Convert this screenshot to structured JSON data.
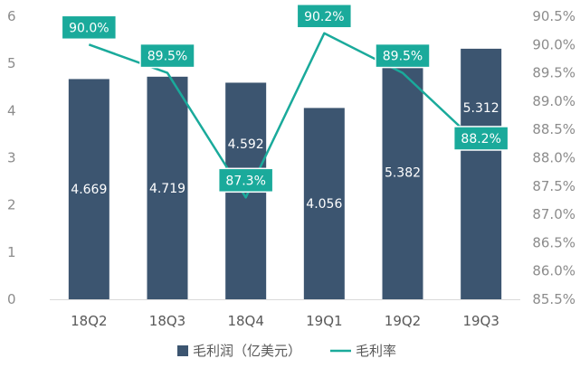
{
  "chart_data": {
    "type": "bar",
    "categories": [
      "18Q2",
      "18Q3",
      "18Q4",
      "19Q1",
      "19Q2",
      "19Q3"
    ],
    "series": [
      {
        "name": "毛利润（亿美元）",
        "type": "bar",
        "axis": "left",
        "values": [
          4.669,
          4.719,
          4.592,
          4.056,
          5.382,
          5.312
        ],
        "labels": [
          "4.669",
          "4.719",
          "4.592",
          "4.056",
          "5.382",
          "5.312"
        ],
        "color": "#3c5570"
      },
      {
        "name": "毛利率",
        "type": "line",
        "axis": "right",
        "values": [
          90.0,
          89.5,
          87.3,
          90.2,
          89.5,
          88.2
        ],
        "labels": [
          "90.0%",
          "89.5%",
          "87.3%",
          "90.2%",
          "89.5%",
          "88.2%"
        ],
        "color": "#1aaa9b"
      }
    ],
    "y_left": {
      "lim": [
        0,
        6
      ],
      "ticks": [
        "0",
        "1",
        "2",
        "3",
        "4",
        "5",
        "6"
      ]
    },
    "y_right": {
      "lim": [
        85.5,
        90.5
      ],
      "ticks": [
        "85.5%",
        "86.0%",
        "86.5%",
        "87.0%",
        "87.5%",
        "88.0%",
        "88.5%",
        "89.0%",
        "89.5%",
        "90.0%",
        "90.5%"
      ]
    },
    "grid": false,
    "legend_position": "bottom"
  }
}
